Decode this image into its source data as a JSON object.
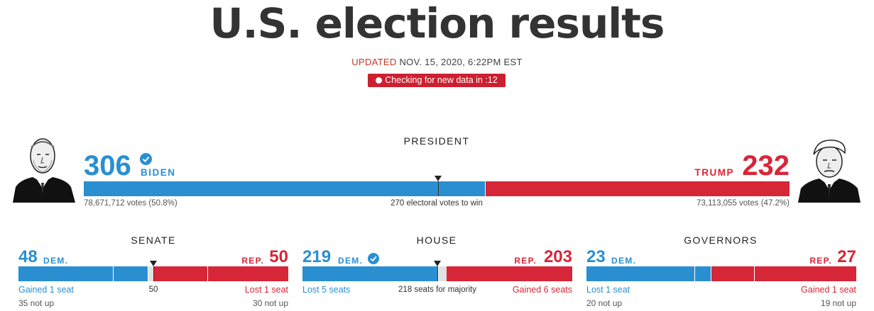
{
  "page": {
    "title": "U.S. election results",
    "updated_prefix": "UPDATED",
    "updated_time": "NOV. 15, 2020, 6:22PM EST",
    "checking": "Checking for new data in :12"
  },
  "colors": {
    "dem": "#2a8fd1",
    "rep": "#d72638",
    "neutral": "#e1e1e1",
    "text": "#333333"
  },
  "president": {
    "label": "PRESIDENT",
    "dem": {
      "count": "306",
      "name": "BIDEN",
      "votes": "78,671,712 votes (50.8%)",
      "winner": true,
      "portrait_icon": "biden-portrait-icon"
    },
    "rep": {
      "count": "232",
      "name": "TRUMP",
      "votes": "73,113,055 votes (47.2%)",
      "portrait_icon": "trump-portrait-icon"
    },
    "threshold_label": "270 electoral votes to win",
    "total": 538,
    "dem_value": 306,
    "rep_value": 232,
    "threshold": 270
  },
  "senate": {
    "label": "SENATE",
    "dem_count": "48",
    "dem_label": "DEM.",
    "rep_count": "50",
    "rep_label": "REP.",
    "dem_change": "Gained 1 seat",
    "rep_change": "Lost 1 seat",
    "dem_not_up": "35 not up",
    "rep_not_up": "30 not up",
    "threshold_label": "50",
    "total": 100,
    "dem_value": 48,
    "rep_value": 50,
    "threshold": 50,
    "dem_not_up_value": 35,
    "rep_not_up_value": 30
  },
  "house": {
    "label": "HOUSE",
    "dem_count": "219",
    "dem_label": "DEM.",
    "dem_winner": true,
    "rep_count": "203",
    "rep_label": "REP.",
    "dem_change": "Lost 5 seats",
    "rep_change": "Gained 6 seats",
    "threshold_label": "218 seats for majority",
    "total": 435,
    "dem_value": 219,
    "rep_value": 203,
    "threshold": 218
  },
  "governors": {
    "label": "GOVERNORS",
    "dem_count": "23",
    "dem_label": "DEM.",
    "rep_count": "27",
    "rep_label": "REP.",
    "dem_change": "Lost 1 seat",
    "rep_change": "Gained 1 seat",
    "dem_not_up": "20 not up",
    "rep_not_up": "19 not up",
    "total": 50,
    "dem_value": 23,
    "rep_value": 27,
    "dem_not_up_value": 20,
    "rep_not_up_value": 19
  }
}
